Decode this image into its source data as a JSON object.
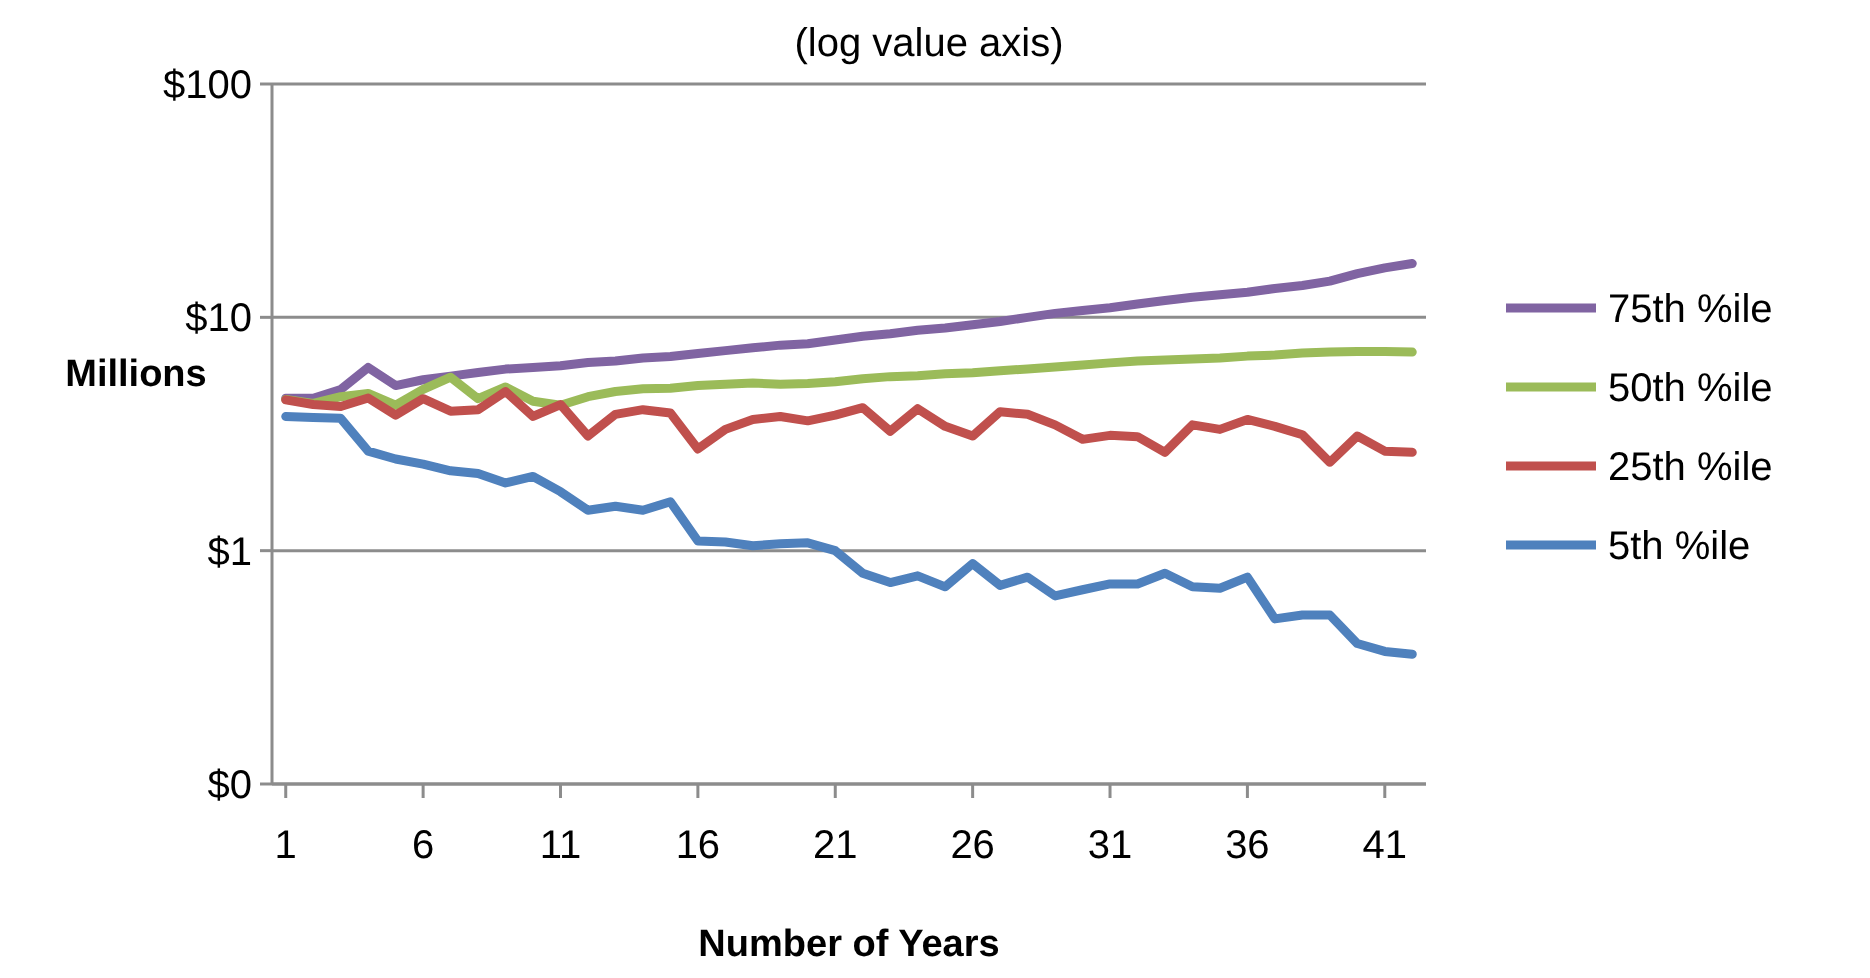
{
  "chart_data": {
    "type": "line",
    "title": "(log value axis)",
    "xlabel": "Number of Years",
    "ylabel": "Millions",
    "x": [
      1,
      2,
      3,
      4,
      5,
      6,
      7,
      8,
      9,
      10,
      11,
      12,
      13,
      14,
      15,
      16,
      17,
      18,
      19,
      20,
      21,
      22,
      23,
      24,
      25,
      26,
      27,
      28,
      29,
      30,
      31,
      32,
      33,
      34,
      35,
      36,
      37,
      38,
      39,
      40,
      41,
      42
    ],
    "xlim": [
      0.5,
      42.5
    ],
    "xticks": [
      1,
      6,
      11,
      16,
      21,
      26,
      31,
      36,
      41
    ],
    "log": true,
    "ylim": [
      0.1,
      100
    ],
    "yticks": [
      {
        "value": 0.1,
        "label": "$0"
      },
      {
        "value": 1,
        "label": "$1"
      },
      {
        "value": 10,
        "label": "$10"
      },
      {
        "value": 100,
        "label": "$100"
      }
    ],
    "grid": "y",
    "legend": "right",
    "marker": "none",
    "line_style": "solid",
    "series": [
      {
        "name": "75th %ile",
        "color": "#8064a2",
        "values": [
          4.5,
          4.5,
          4.9,
          6.1,
          5.1,
          5.4,
          5.6,
          5.8,
          6.0,
          6.1,
          6.2,
          6.4,
          6.5,
          6.7,
          6.8,
          7.0,
          7.2,
          7.4,
          7.6,
          7.7,
          8.0,
          8.3,
          8.5,
          8.8,
          9.0,
          9.3,
          9.6,
          10,
          10.4,
          10.7,
          11,
          11.4,
          11.8,
          12.2,
          12.5,
          12.8,
          13.3,
          13.7,
          14.3,
          15.4,
          16.3,
          17
        ]
      },
      {
        "name": "50th %ile",
        "color": "#9bbb59",
        "values": [
          4.45,
          4.28,
          4.57,
          4.72,
          4.2,
          4.91,
          5.54,
          4.48,
          5.03,
          4.37,
          4.2,
          4.57,
          4.81,
          4.94,
          4.97,
          5.1,
          5.17,
          5.23,
          5.17,
          5.2,
          5.3,
          5.46,
          5.57,
          5.62,
          5.73,
          5.79,
          5.9,
          6.01,
          6.13,
          6.25,
          6.38,
          6.5,
          6.56,
          6.63,
          6.69,
          6.82,
          6.89,
          7.03,
          7.1,
          7.13,
          7.13,
          7.1
        ]
      },
      {
        "name": "25th %ile",
        "color": "#c0504d",
        "values": [
          4.43,
          4.23,
          4.15,
          4.51,
          3.81,
          4.48,
          3.96,
          4.02,
          4.81,
          3.76,
          4.23,
          3.1,
          3.84,
          4.02,
          3.89,
          2.73,
          3.31,
          3.65,
          3.76,
          3.6,
          3.81,
          4.1,
          3.25,
          4.06,
          3.41,
          3.1,
          3.94,
          3.84,
          3.46,
          3.0,
          3.12,
          3.08,
          2.64,
          3.46,
          3.31,
          3.65,
          3.41,
          3.14,
          2.39,
          3.1,
          2.67,
          2.64
        ]
      },
      {
        "name": "5th %ile",
        "color": "#4f81bd",
        "values": [
          3.76,
          3.72,
          3.69,
          2.67,
          2.47,
          2.35,
          2.2,
          2.14,
          1.95,
          2.08,
          1.79,
          1.49,
          1.55,
          1.49,
          1.62,
          1.1,
          1.09,
          1.05,
          1.07,
          1.08,
          1.0,
          0.8,
          0.73,
          0.78,
          0.7,
          0.88,
          0.71,
          0.77,
          0.64,
          0.68,
          0.72,
          0.72,
          0.8,
          0.7,
          0.69,
          0.77,
          0.51,
          0.53,
          0.53,
          0.4,
          0.37,
          0.36
        ]
      }
    ]
  }
}
